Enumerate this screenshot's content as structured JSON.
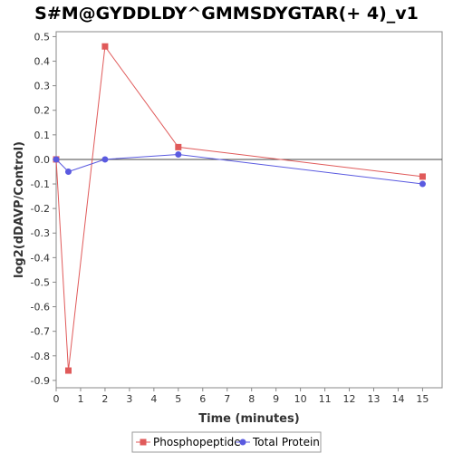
{
  "chart_data": {
    "type": "line",
    "title": "S#M@GYDDLDY^GMMSDYGTAR(+ 4)_v1",
    "xlabel": "Time (minutes)",
    "ylabel": "log2(dDAVP/Control)",
    "xlim": [
      0,
      15.8
    ],
    "ylim": [
      -0.93,
      0.52
    ],
    "xticks": [
      0,
      1,
      2,
      3,
      4,
      5,
      6,
      7,
      8,
      9,
      10,
      11,
      12,
      13,
      14,
      15
    ],
    "yticks": [
      0.5,
      0.4,
      0.3,
      0.2,
      0.1,
      0.0,
      -0.1,
      -0.2,
      -0.3,
      -0.4,
      -0.5,
      -0.6,
      -0.7,
      -0.8,
      -0.9
    ],
    "ytick_labels": [
      "0.5",
      "0.4",
      "0.3",
      "0.2",
      "0.1",
      "0.0",
      "-0.1",
      "-0.2",
      "-0.3",
      "-0.4",
      "-0.5",
      "-0.6",
      "-0.7",
      "-0.8",
      "-0.9"
    ],
    "zero_line": 0.0,
    "grid": false,
    "legend_position": "bottom",
    "series": [
      {
        "name": "Phosphopeptide",
        "color": "#e05a5a",
        "marker": "square",
        "x": [
          0,
          0.5,
          2,
          5,
          15
        ],
        "y": [
          0.0,
          -0.86,
          0.46,
          0.05,
          -0.07
        ]
      },
      {
        "name": "Total Protein",
        "color": "#5a5ae0",
        "marker": "circle",
        "x": [
          0,
          0.5,
          2,
          5,
          15
        ],
        "y": [
          0.0,
          -0.05,
          0.0,
          0.02,
          -0.1
        ]
      }
    ]
  }
}
